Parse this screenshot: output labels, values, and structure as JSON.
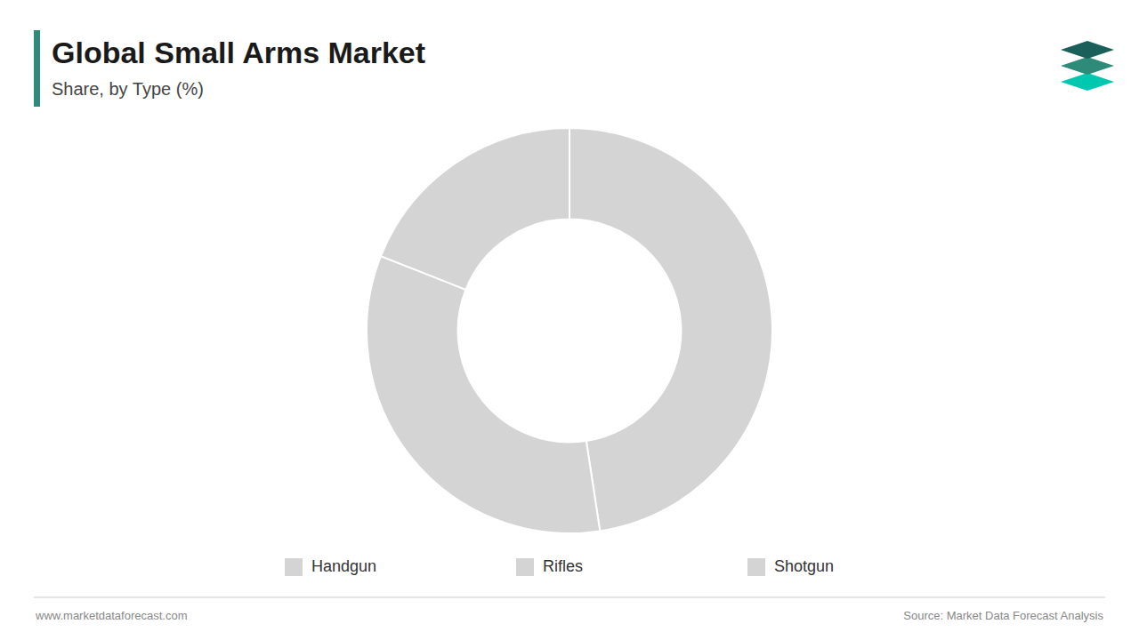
{
  "chart_data": {
    "type": "donut",
    "title": "Global Small Arms Market",
    "subtitle": "Share, by Type (%)",
    "categories": [
      "Handgun",
      "Rifles",
      "Shotgun"
    ],
    "values": [
      47.6,
      33.4,
      19.0
    ],
    "colors": [
      "#d4d4d4",
      "#d4d4d4",
      "#d4d4d4"
    ],
    "legend": "bottom",
    "annotations": [
      "www.marketdataforecast.com",
      "Source: Market Data Forecast Analysis"
    ]
  }
}
